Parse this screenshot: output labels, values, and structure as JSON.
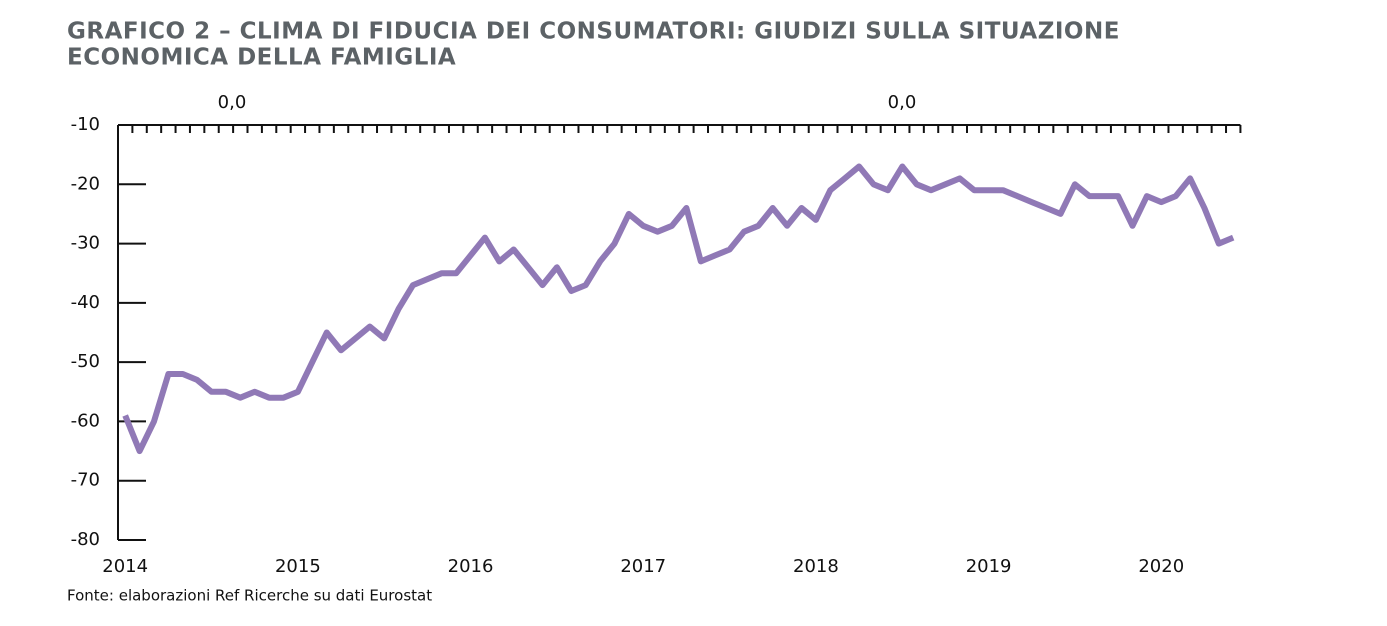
{
  "chart_data": {
    "type": "line",
    "title": [
      "GRAFICO 2 – CLIMA DI FIDUCIA DEI CONSUMATORI: GIUDIZI SULLA SITUAZIONE",
      "ECONOMICA DELLA FAMIGLIA"
    ],
    "source": "Fonte: elaborazioni Ref Ricerche su dati Eurostat",
    "annotations": [
      "0,0",
      "0,0"
    ],
    "categories": [
      "2014",
      null,
      null,
      null,
      null,
      null,
      null,
      null,
      null,
      null,
      null,
      null,
      "2015",
      null,
      null,
      null,
      null,
      null,
      null,
      null,
      null,
      null,
      null,
      null,
      "2016",
      null,
      null,
      null,
      null,
      null,
      null,
      null,
      null,
      null,
      null,
      null,
      "2017",
      null,
      null,
      null,
      null,
      null,
      null,
      null,
      null,
      null,
      null,
      null,
      "2018",
      null,
      null,
      null,
      null,
      null,
      null,
      null,
      null,
      null,
      null,
      null,
      "2019",
      null,
      null,
      null,
      null,
      null,
      null,
      null,
      null,
      null,
      null,
      null,
      "2020",
      null,
      null,
      null,
      null,
      null
    ],
    "series": [
      {
        "color": "#9079b6",
        "values": [
          -59,
          -65,
          -60,
          -52,
          -52,
          -53,
          -55,
          -55,
          -56,
          -55,
          -56,
          -56,
          -55,
          -50,
          -45,
          -48,
          -46,
          -44,
          -46,
          -41,
          -37,
          -36,
          -35,
          -35,
          -32,
          -29,
          -33,
          -31,
          -34,
          -37,
          -34,
          -38,
          -37,
          -33,
          -30,
          -25,
          -27,
          -28,
          -27,
          -24,
          -33,
          -32,
          -31,
          -28,
          -27,
          -24,
          -27,
          -24,
          -26,
          -21,
          -19,
          -17,
          -20,
          -21,
          -17,
          -20,
          -21,
          -20,
          -19,
          -21,
          -21,
          -21,
          -22,
          -23,
          -24,
          -25,
          -20,
          -22,
          -22,
          -22,
          -27,
          -22,
          -23,
          -22,
          -19,
          -24,
          -30,
          -29
        ]
      }
    ],
    "ylim": [
      -80,
      -10
    ],
    "yticks": [
      -10,
      -20,
      -30,
      -40,
      -50,
      -60,
      -70,
      -80
    ]
  }
}
